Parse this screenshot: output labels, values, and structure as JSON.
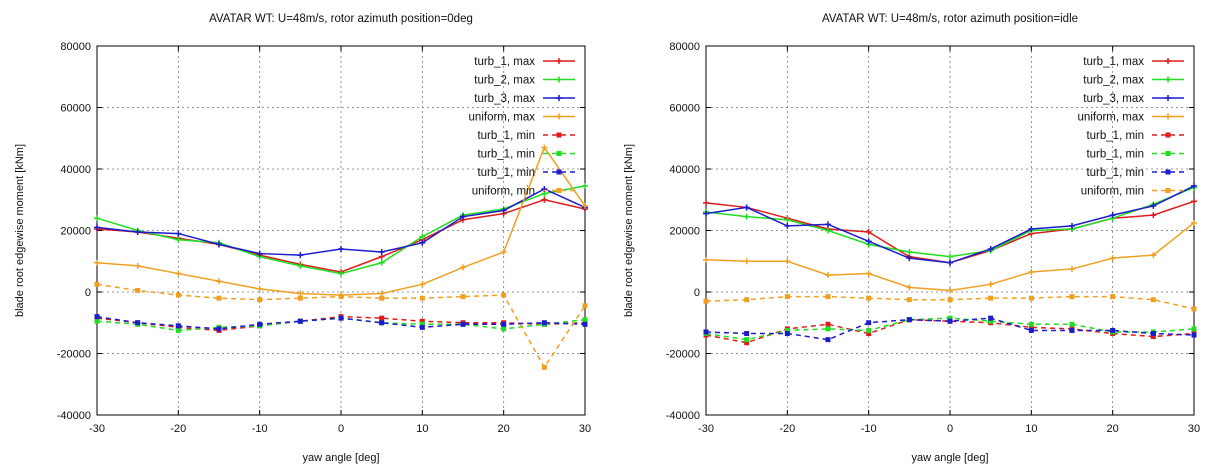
{
  "chart_data": [
    {
      "type": "line",
      "title": "AVATAR WT: U=48m/s, rotor azimuth position=0deg",
      "xlabel": "yaw angle [deg]",
      "ylabel": "blade root edgewise moment [kNm]",
      "xlim": [
        -30,
        30
      ],
      "ylim": [
        -40000,
        80000
      ],
      "xticks": [
        -30,
        -20,
        -10,
        0,
        10,
        20,
        30
      ],
      "yticks": [
        -40000,
        -20000,
        0,
        20000,
        40000,
        60000,
        80000
      ],
      "grid": true,
      "legend_position": "top-right",
      "x": [
        -30,
        -25,
        -20,
        -15,
        -10,
        -5,
        0,
        5,
        10,
        15,
        20,
        25,
        30
      ],
      "series": [
        {
          "name": "turb_1, max",
          "color": "#dd1c1c",
          "style": "solid",
          "marker": "plus",
          "values": [
            20500,
            19500,
            17500,
            15500,
            12000,
            9000,
            6500,
            11500,
            17000,
            23500,
            25500,
            30000,
            27000
          ]
        },
        {
          "name": "turb_2, max",
          "color": "#22dd22",
          "style": "solid",
          "marker": "plus",
          "values": [
            24000,
            20000,
            17000,
            16000,
            11500,
            8500,
            6000,
            9500,
            18000,
            25000,
            27000,
            32000,
            34500
          ]
        },
        {
          "name": "turb_3, max",
          "color": "#1c1ccc",
          "style": "solid",
          "marker": "plus",
          "values": [
            21000,
            19500,
            19000,
            15500,
            12500,
            12000,
            14000,
            13000,
            16000,
            24500,
            26500,
            33500,
            27500
          ]
        },
        {
          "name": "uniform, max",
          "color": "#f0a020",
          "style": "solid",
          "marker": "plus",
          "values": [
            9500,
            8500,
            6000,
            3500,
            1000,
            -500,
            -1000,
            -500,
            2500,
            8000,
            13000,
            47000,
            28000
          ]
        },
        {
          "name": "turb_1, min",
          "color": "#dd1c1c",
          "style": "dashed",
          "marker": "square",
          "values": [
            -8500,
            -10000,
            -11500,
            -12500,
            -11000,
            -9500,
            -8000,
            -8500,
            -9500,
            -10000,
            -10000,
            -10500,
            -10000
          ]
        },
        {
          "name": "turb_1, min",
          "color": "#22dd22",
          "style": "dashed",
          "marker": "square",
          "values": [
            -9500,
            -10500,
            -12500,
            -11500,
            -11000,
            -9500,
            -8500,
            -10000,
            -10500,
            -10500,
            -12000,
            -10500,
            -9000
          ]
        },
        {
          "name": "turb_1, min",
          "color": "#1c1ccc",
          "style": "dashed",
          "marker": "square",
          "values": [
            -8000,
            -10000,
            -11000,
            -12000,
            -10500,
            -9500,
            -8500,
            -10000,
            -11500,
            -10500,
            -10500,
            -10000,
            -10500
          ]
        },
        {
          "name": "uniform, min",
          "color": "#f0a020",
          "style": "dashed",
          "marker": "square",
          "values": [
            2500,
            500,
            -1000,
            -2000,
            -2500,
            -2000,
            -1500,
            -2000,
            -2000,
            -1500,
            -1000,
            -24500,
            -4500
          ]
        }
      ]
    },
    {
      "type": "line",
      "title": "AVATAR WT: U=48m/s, rotor azimuth position=idle",
      "xlabel": "yaw angle [deg]",
      "ylabel": "blade root edgewise moment [kNm]",
      "xlim": [
        -30,
        30
      ],
      "ylim": [
        -40000,
        80000
      ],
      "xticks": [
        -30,
        -20,
        -10,
        0,
        10,
        20,
        30
      ],
      "yticks": [
        -40000,
        -20000,
        0,
        20000,
        40000,
        60000,
        80000
      ],
      "grid": true,
      "legend_position": "top-right",
      "x": [
        -30,
        -25,
        -20,
        -15,
        -10,
        -5,
        0,
        5,
        10,
        15,
        20,
        25,
        30
      ],
      "series": [
        {
          "name": "turb_1, max",
          "color": "#dd1c1c",
          "style": "solid",
          "marker": "plus",
          "values": [
            29000,
            27500,
            24000,
            20500,
            19500,
            11500,
            9500,
            13500,
            19000,
            20500,
            24000,
            25000,
            29500
          ]
        },
        {
          "name": "turb_2, max",
          "color": "#22dd22",
          "style": "solid",
          "marker": "plus",
          "values": [
            26000,
            24500,
            23500,
            20000,
            15500,
            13000,
            11500,
            13500,
            20000,
            20500,
            24000,
            28500,
            34000
          ]
        },
        {
          "name": "turb_3, max",
          "color": "#1c1ccc",
          "style": "solid",
          "marker": "plus",
          "values": [
            25500,
            27500,
            21500,
            22000,
            16500,
            11000,
            9500,
            14000,
            20500,
            21500,
            25000,
            28000,
            34500
          ]
        },
        {
          "name": "uniform, max",
          "color": "#f0a020",
          "style": "solid",
          "marker": "plus",
          "values": [
            10500,
            10000,
            10000,
            5500,
            6000,
            1500,
            500,
            2500,
            6500,
            7500,
            11000,
            12000,
            22500
          ]
        },
        {
          "name": "turb_1, min",
          "color": "#dd1c1c",
          "style": "dashed",
          "marker": "square",
          "values": [
            -14000,
            -16500,
            -12000,
            -10500,
            -13500,
            -9000,
            -9500,
            -10000,
            -11500,
            -12000,
            -13500,
            -14500,
            -13500
          ]
        },
        {
          "name": "turb_1, min",
          "color": "#22dd22",
          "style": "dashed",
          "marker": "square",
          "values": [
            -13500,
            -15500,
            -12500,
            -12000,
            -12500,
            -9000,
            -8500,
            -9500,
            -10500,
            -10500,
            -13000,
            -13000,
            -12000
          ]
        },
        {
          "name": "turb_1, min",
          "color": "#1c1ccc",
          "style": "dashed",
          "marker": "square",
          "values": [
            -13000,
            -13500,
            -13500,
            -15500,
            -10000,
            -9000,
            -9500,
            -8500,
            -12500,
            -12500,
            -12500,
            -13500,
            -14000
          ]
        },
        {
          "name": "uniform, min",
          "color": "#f0a020",
          "style": "dashed",
          "marker": "square",
          "values": [
            -3000,
            -2500,
            -1500,
            -1500,
            -2000,
            -2500,
            -2500,
            -2000,
            -2000,
            -1500,
            -1500,
            -2500,
            -5500
          ]
        }
      ]
    }
  ]
}
